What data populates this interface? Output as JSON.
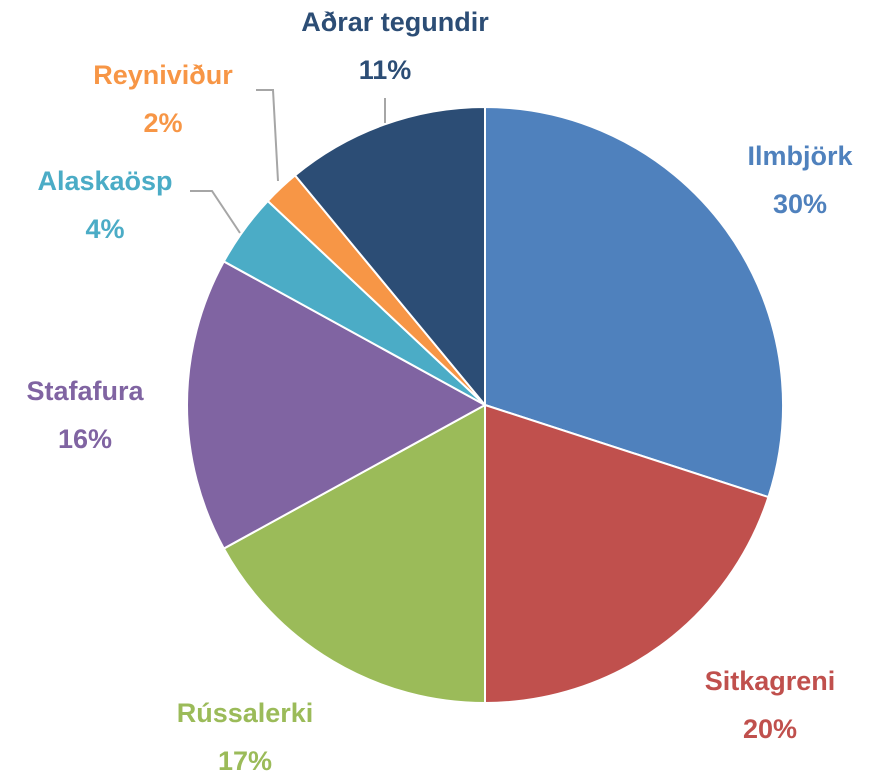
{
  "chart_data": {
    "type": "pie",
    "categories": [
      "Ilmbjörk",
      "Sitkagreni",
      "Rússalerki",
      "Stafafura",
      "Alaskaösp",
      "Reyniviður",
      "Aðrar tegundir"
    ],
    "values": [
      30,
      20,
      17,
      16,
      4,
      2,
      11
    ],
    "value_labels": [
      "30%",
      "20%",
      "17%",
      "16%",
      "4%",
      "2%",
      "11%"
    ],
    "colors": [
      "#4f81bd",
      "#c0504d",
      "#9bbb59",
      "#8064a2",
      "#4bacc6",
      "#f79646",
      "#2c4d75"
    ]
  }
}
